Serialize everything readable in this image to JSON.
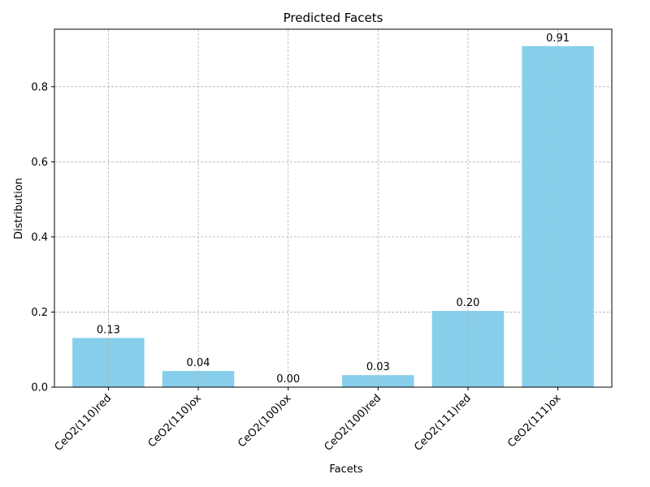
{
  "chart_data": {
    "type": "bar",
    "title": "Predicted Facets",
    "xlabel": "Facets",
    "ylabel": "Distribution",
    "categories": [
      "CeO2(110)red",
      "CeO2(110)ox",
      "CeO2(100)ox",
      "CeO2(100)red",
      "CeO2(111)red",
      "CeO2(111)ox"
    ],
    "values": [
      0.131,
      0.043,
      0.0,
      0.032,
      0.203,
      0.908
    ],
    "value_labels": [
      "0.13",
      "0.04",
      "0.00",
      "0.03",
      "0.20",
      "0.91"
    ],
    "ylim": [
      0,
      0.953
    ],
    "yticks": [
      0.0,
      0.2,
      0.4,
      0.6,
      0.8
    ],
    "ytick_labels": [
      "0.0",
      "0.2",
      "0.4",
      "0.6",
      "0.8"
    ],
    "grid": true,
    "bar_color": "#87ceeb",
    "grid_color": "#b0b0b0"
  }
}
